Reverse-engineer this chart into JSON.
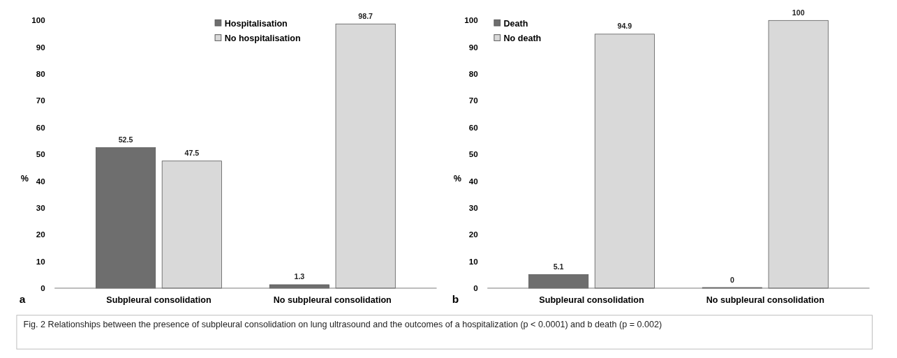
{
  "chart_data": [
    {
      "type": "bar",
      "ylabel": "%",
      "categories": [
        "Subpleural consolidation",
        "No subpleural consolidation"
      ],
      "series": [
        {
          "name": "Hospitalisation",
          "color": "#6e6e6e",
          "values": [
            52.5,
            1.3
          ]
        },
        {
          "name": "No hospitalisation",
          "color": "#d9d9d9",
          "values": [
            47.5,
            98.7
          ]
        }
      ],
      "ylim": [
        0,
        100
      ],
      "yticks": [
        0,
        10,
        20,
        30,
        40,
        50,
        60,
        70,
        80,
        90,
        100
      ],
      "data_labels": true,
      "legend": "top",
      "grid": false,
      "annotations": [
        "a",
        "Fig. 2  Relationships between the presence of subpleural consolidation on lung ultrasound and the outcomes of a hospitalization (p < 0.0001) and b death (p = 0.002)"
      ]
    },
    {
      "type": "bar",
      "ylabel": "%",
      "categories": [
        "Subpleural consolidation",
        "No subpleural consolidation"
      ],
      "series": [
        {
          "name": "Death",
          "color": "#6e6e6e",
          "values": [
            5.1,
            0
          ]
        },
        {
          "name": "No death",
          "color": "#d9d9d9",
          "values": [
            94.9,
            100
          ]
        }
      ],
      "ylim": [
        0,
        100
      ],
      "yticks": [
        0,
        10,
        20,
        30,
        40,
        50,
        60,
        70,
        80,
        90,
        100
      ],
      "data_labels": true,
      "legend": "top left",
      "grid": false,
      "annotations": [
        "b"
      ]
    }
  ]
}
